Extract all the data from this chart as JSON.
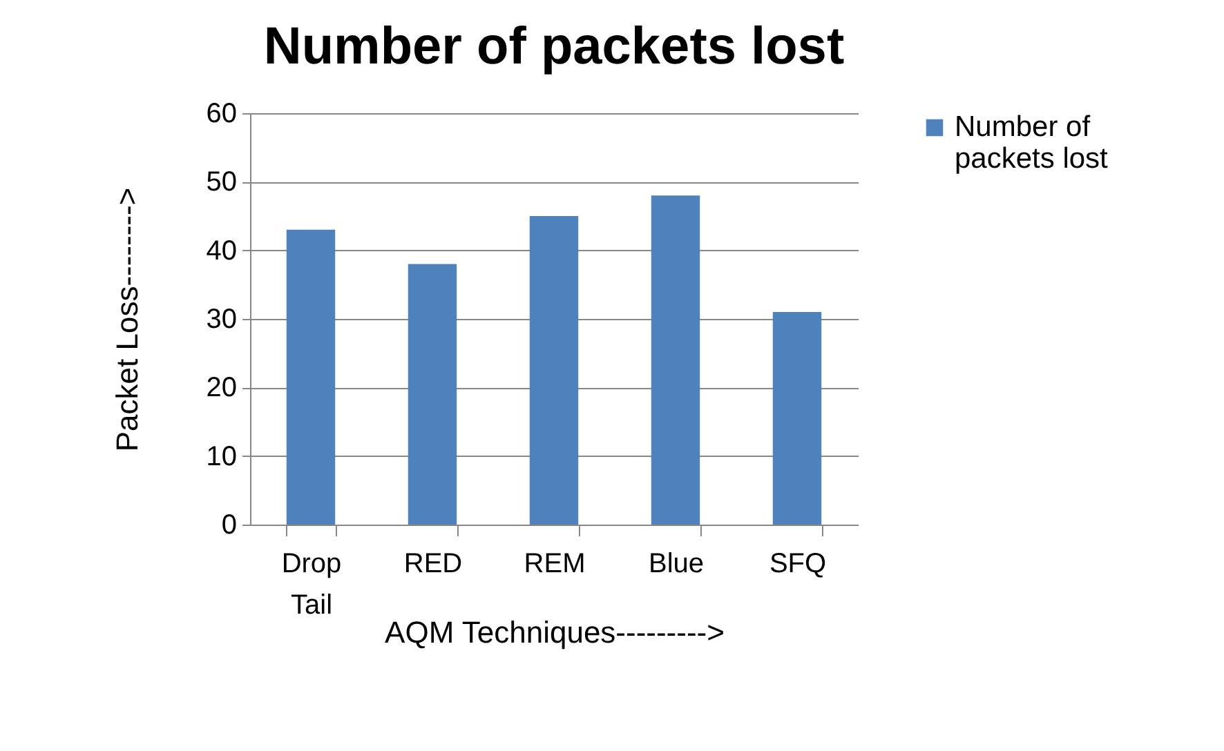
{
  "chart_data": {
    "type": "bar",
    "title": "Number of packets lost",
    "xlabel": "AQM Techniques--------->",
    "ylabel": "Packet Loss-------->",
    "categories": [
      "Drop Tail",
      "RED",
      "REM",
      "Blue",
      "SFQ"
    ],
    "series": [
      {
        "name": "Number of packets lost",
        "color": "#4f81bd",
        "values": [
          43,
          38,
          45,
          48,
          31
        ]
      }
    ],
    "ylim": [
      0,
      60
    ],
    "yticks": [
      0,
      10,
      20,
      30,
      40,
      50,
      60
    ],
    "grid": "y",
    "legend": "right"
  }
}
